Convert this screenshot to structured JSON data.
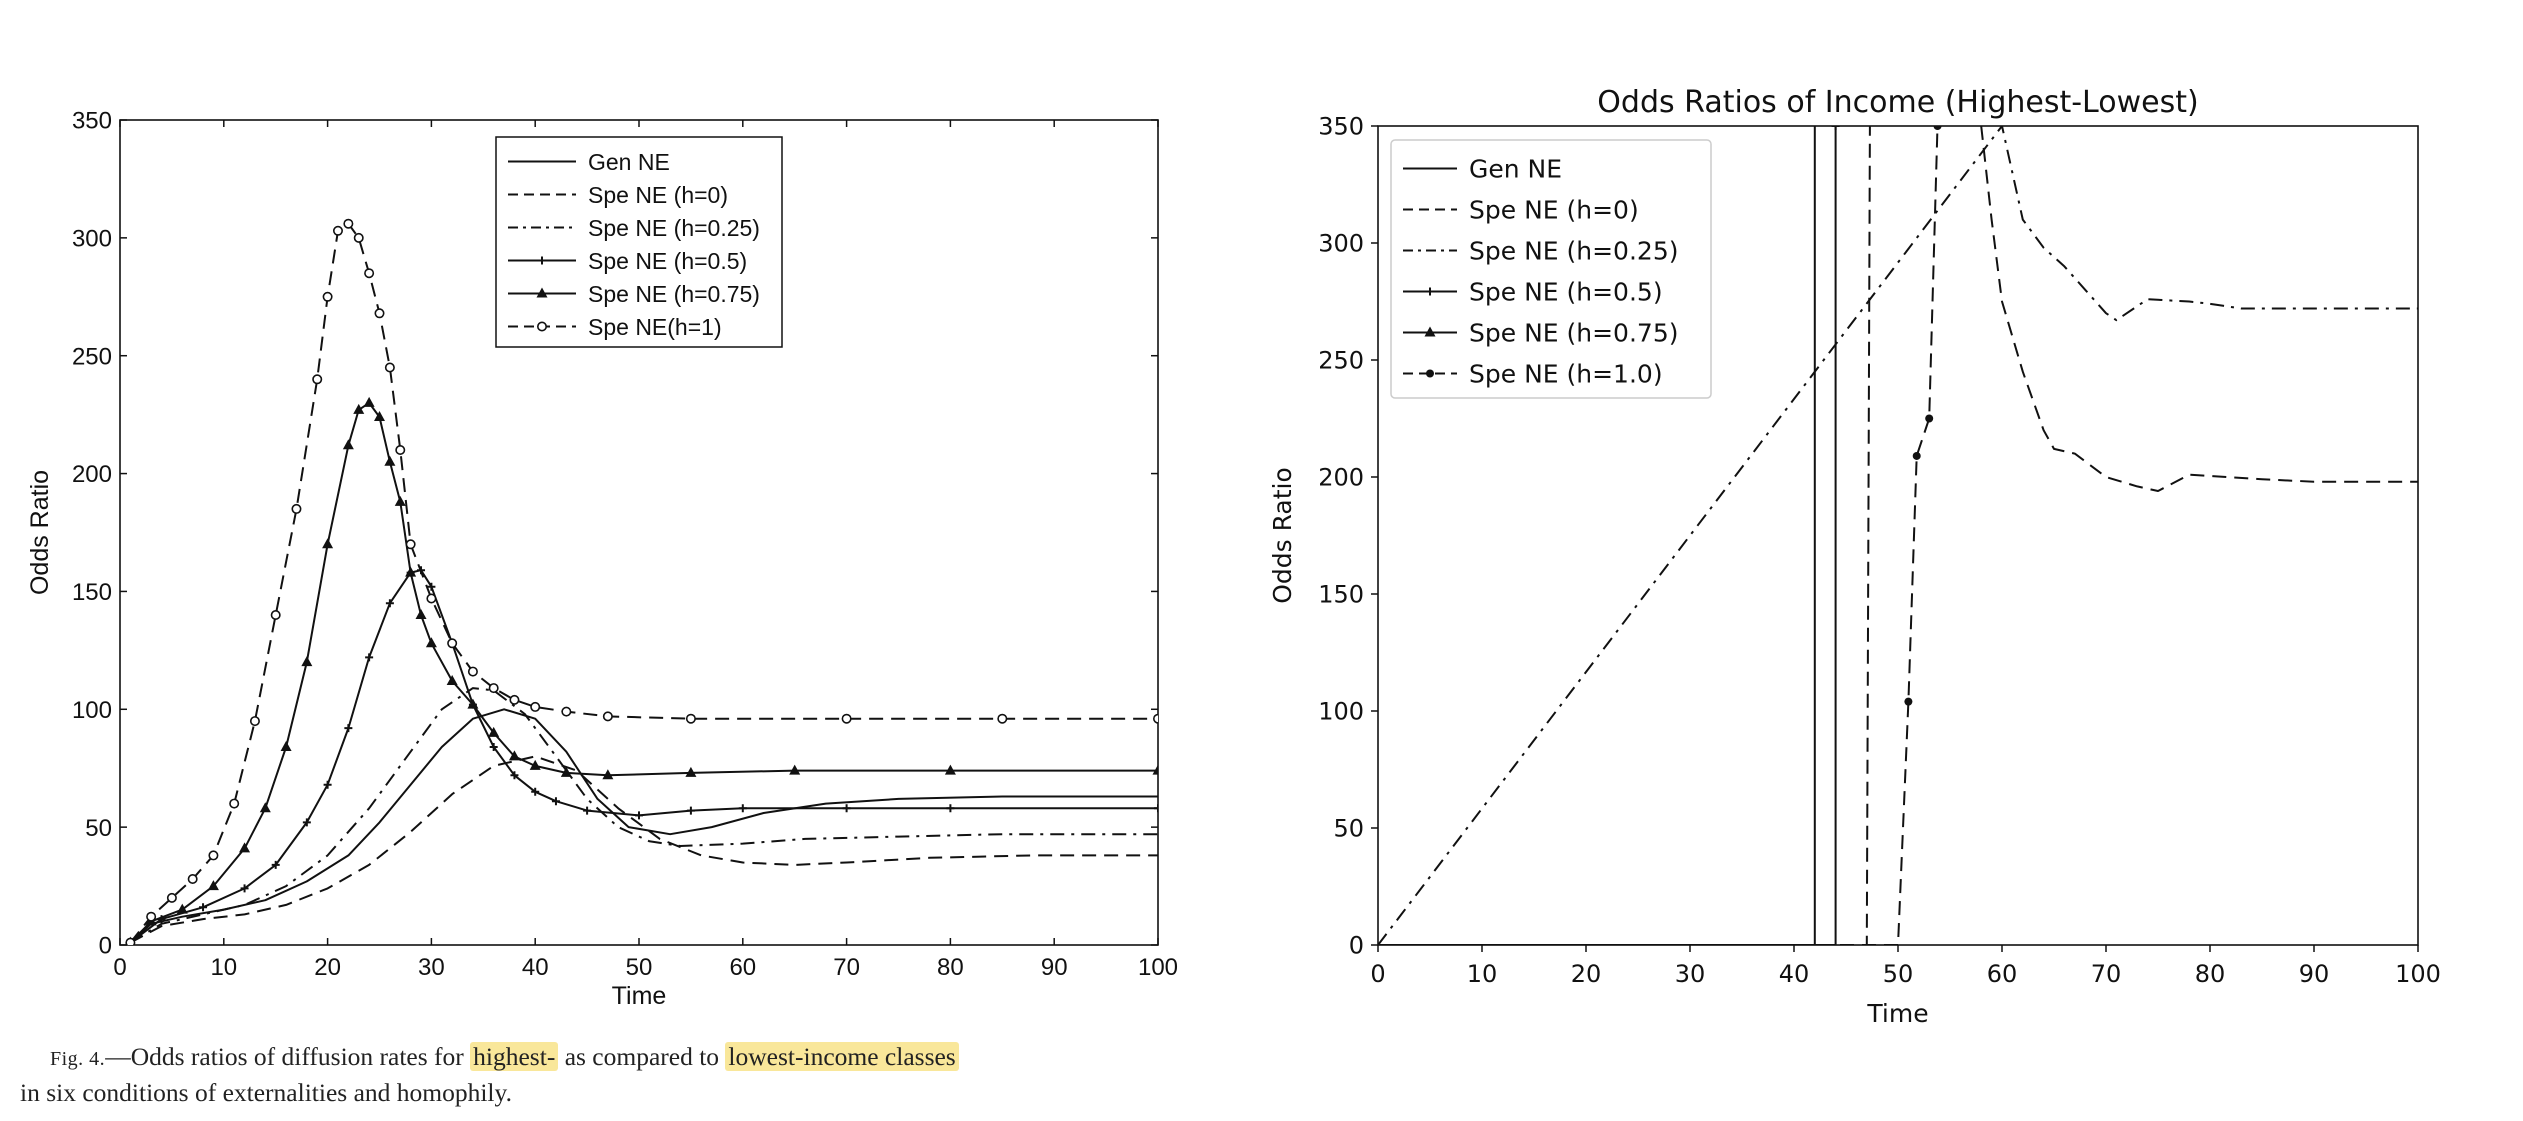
{
  "chart_data": [
    {
      "type": "line",
      "title": "",
      "xlabel": "Time",
      "ylabel": "Odds Ratio",
      "xlim": [
        0,
        100
      ],
      "ylim": [
        0,
        350
      ],
      "xticks": [
        0,
        10,
        20,
        30,
        40,
        50,
        60,
        70,
        80,
        90,
        100
      ],
      "yticks": [
        0,
        50,
        100,
        150,
        200,
        250,
        300,
        350
      ],
      "legend_position": "top-center",
      "series": [
        {
          "name": "Gen NE",
          "style": "solid",
          "points": [
            [
              1,
              1
            ],
            [
              3,
              9
            ],
            [
              6,
              12
            ],
            [
              10,
              15
            ],
            [
              14,
              19
            ],
            [
              18,
              27
            ],
            [
              22,
              38
            ],
            [
              25,
              52
            ],
            [
              28,
              68
            ],
            [
              31,
              84
            ],
            [
              34,
              96
            ],
            [
              37,
              100
            ],
            [
              40,
              96
            ],
            [
              43,
              82
            ],
            [
              46,
              62
            ],
            [
              49,
              50
            ],
            [
              53,
              47
            ],
            [
              57,
              50
            ],
            [
              62,
              56
            ],
            [
              68,
              60
            ],
            [
              75,
              62
            ],
            [
              85,
              63
            ],
            [
              100,
              63
            ]
          ]
        },
        {
          "name": "Spe NE (h=0)",
          "style": "dashed",
          "points": [
            [
              1,
              1
            ],
            [
              4,
              8
            ],
            [
              8,
              11
            ],
            [
              12,
              13
            ],
            [
              16,
              17
            ],
            [
              20,
              24
            ],
            [
              24,
              34
            ],
            [
              28,
              48
            ],
            [
              32,
              64
            ],
            [
              36,
              76
            ],
            [
              40,
              80
            ],
            [
              44,
              74
            ],
            [
              48,
              58
            ],
            [
              52,
              45
            ],
            [
              56,
              38
            ],
            [
              60,
              35
            ],
            [
              65,
              34
            ],
            [
              70,
              35
            ],
            [
              78,
              37
            ],
            [
              88,
              38
            ],
            [
              100,
              38
            ]
          ]
        },
        {
          "name": "Spe NE (h=0.25)",
          "style": "dashdot",
          "points": [
            [
              1,
              1
            ],
            [
              4,
              9
            ],
            [
              8,
              13
            ],
            [
              12,
              17
            ],
            [
              16,
              25
            ],
            [
              20,
              38
            ],
            [
              24,
              58
            ],
            [
              28,
              82
            ],
            [
              31,
              100
            ],
            [
              34,
              109
            ],
            [
              36,
              108
            ],
            [
              39,
              98
            ],
            [
              42,
              80
            ],
            [
              45,
              62
            ],
            [
              48,
              50
            ],
            [
              51,
              44
            ],
            [
              54,
              42
            ],
            [
              60,
              43
            ],
            [
              66,
              45
            ],
            [
              75,
              46
            ],
            [
              85,
              47
            ],
            [
              100,
              47
            ]
          ]
        },
        {
          "name": "Spe NE (h=0.5)",
          "style": "solid",
          "marker": "plus",
          "points": [
            [
              1,
              1
            ],
            [
              4,
              11
            ],
            [
              8,
              16
            ],
            [
              12,
              24
            ],
            [
              15,
              34
            ],
            [
              18,
              52
            ],
            [
              20,
              68
            ],
            [
              22,
              92
            ],
            [
              24,
              122
            ],
            [
              26,
              145
            ],
            [
              28,
              158
            ],
            [
              29,
              159
            ],
            [
              30,
              152
            ],
            [
              32,
              128
            ],
            [
              34,
              102
            ],
            [
              36,
              84
            ],
            [
              38,
              72
            ],
            [
              40,
              65
            ],
            [
              42,
              61
            ],
            [
              45,
              57
            ],
            [
              50,
              55
            ],
            [
              55,
              57
            ],
            [
              60,
              58
            ],
            [
              70,
              58
            ],
            [
              80,
              58
            ],
            [
              100,
              58
            ]
          ]
        },
        {
          "name": "Spe NE (h=0.75)",
          "style": "solid",
          "marker": "triangle",
          "points": [
            [
              1,
              1
            ],
            [
              3,
              10
            ],
            [
              6,
              15
            ],
            [
              9,
              25
            ],
            [
              12,
              41
            ],
            [
              14,
              58
            ],
            [
              16,
              84
            ],
            [
              18,
              120
            ],
            [
              20,
              170
            ],
            [
              22,
              212
            ],
            [
              23,
              227
            ],
            [
              24,
              230
            ],
            [
              25,
              224
            ],
            [
              26,
              205
            ],
            [
              27,
              188
            ],
            [
              28,
              158
            ],
            [
              29,
              140
            ],
            [
              30,
              128
            ],
            [
              32,
              112
            ],
            [
              34,
              102
            ],
            [
              36,
              90
            ],
            [
              38,
              80
            ],
            [
              40,
              76
            ],
            [
              43,
              73
            ],
            [
              47,
              72
            ],
            [
              55,
              73
            ],
            [
              65,
              74
            ],
            [
              80,
              74
            ],
            [
              100,
              74
            ]
          ]
        },
        {
          "name": "Spe NE(h=1)",
          "style": "dashed",
          "marker": "circle",
          "points": [
            [
              1,
              1
            ],
            [
              3,
              12
            ],
            [
              5,
              20
            ],
            [
              7,
              28
            ],
            [
              9,
              38
            ],
            [
              11,
              60
            ],
            [
              13,
              95
            ],
            [
              15,
              140
            ],
            [
              17,
              185
            ],
            [
              19,
              240
            ],
            [
              20,
              275
            ],
            [
              21,
              303
            ],
            [
              22,
              306
            ],
            [
              23,
              300
            ],
            [
              24,
              285
            ],
            [
              25,
              268
            ],
            [
              26,
              245
            ],
            [
              27,
              210
            ],
            [
              28,
              170
            ],
            [
              30,
              147
            ],
            [
              32,
              128
            ],
            [
              34,
              116
            ],
            [
              36,
              109
            ],
            [
              38,
              104
            ],
            [
              40,
              101
            ],
            [
              43,
              99
            ],
            [
              47,
              97
            ],
            [
              55,
              96
            ],
            [
              70,
              96
            ],
            [
              85,
              96
            ],
            [
              100,
              96
            ]
          ]
        }
      ]
    },
    {
      "type": "line",
      "title": "Odds Ratios of Income (Highest-Lowest)",
      "xlabel": "Time",
      "ylabel": "Odds Ratio",
      "xlim": [
        0,
        100
      ],
      "ylim": [
        0,
        350
      ],
      "xticks": [
        0,
        10,
        20,
        30,
        40,
        50,
        60,
        70,
        80,
        90,
        100
      ],
      "yticks": [
        0,
        50,
        100,
        150,
        200,
        250,
        300,
        350
      ],
      "legend_position": "top-left",
      "series": [
        {
          "name": "Gen NE",
          "style": "solid",
          "points": [
            [
              0,
              0
            ],
            [
              42,
              0
            ],
            [
              42,
              350
            ]
          ]
        },
        {
          "name": "Spe NE (h=0)",
          "style": "dashed",
          "points": [
            [
              0,
              0
            ],
            [
              47,
              0
            ],
            [
              47.3,
              350
            ],
            [
              null,
              null
            ],
            [
              58,
              350
            ],
            [
              59,
              310
            ],
            [
              60,
              275
            ],
            [
              62,
              245
            ],
            [
              64,
              220
            ],
            [
              65,
              212
            ],
            [
              67,
              210
            ],
            [
              70,
              200
            ],
            [
              73,
              196
            ],
            [
              75,
              194
            ],
            [
              78,
              201
            ],
            [
              85,
              199
            ],
            [
              90,
              198
            ],
            [
              100,
              198
            ]
          ]
        },
        {
          "name": "Spe NE (h=0.25)",
          "style": "dashdot",
          "points": [
            [
              0,
              0
            ],
            [
              60,
              350
            ],
            [
              61,
              330
            ],
            [
              62,
              310
            ],
            [
              64,
              298
            ],
            [
              66,
              290
            ],
            [
              68,
              280
            ],
            [
              70,
              270
            ],
            [
              71,
              267
            ],
            [
              72,
              270
            ],
            [
              74,
              276
            ],
            [
              78,
              275
            ],
            [
              80,
              274
            ],
            [
              83,
              272
            ],
            [
              90,
              272
            ],
            [
              100,
              272
            ]
          ]
        },
        {
          "name": "Spe NE (h=0.5)",
          "style": "solid",
          "marker": "plus",
          "points": [
            [
              0,
              0
            ],
            [
              44,
              0
            ],
            [
              44,
              350
            ]
          ]
        },
        {
          "name": "Spe NE (h=0.75)",
          "style": "solid",
          "marker": "triangle",
          "points": []
        },
        {
          "name": "Spe NE (h=1.0)",
          "style": "dashed",
          "marker": "dot",
          "points": [
            [
              0,
              0
            ],
            [
              50,
              0
            ],
            [
              51,
              104
            ],
            [
              51.8,
              209
            ],
            [
              53,
              225
            ],
            [
              53.8,
              350
            ]
          ]
        }
      ]
    }
  ],
  "caption": {
    "fig": "Fig. 4.",
    "text_a": "—Odds ratios of diffusion rates for ",
    "hl1": "highest-",
    "text_b": " as compared to ",
    "hl2": "lowest-income classes",
    "line2": "in six conditions of externalities and homophily."
  }
}
